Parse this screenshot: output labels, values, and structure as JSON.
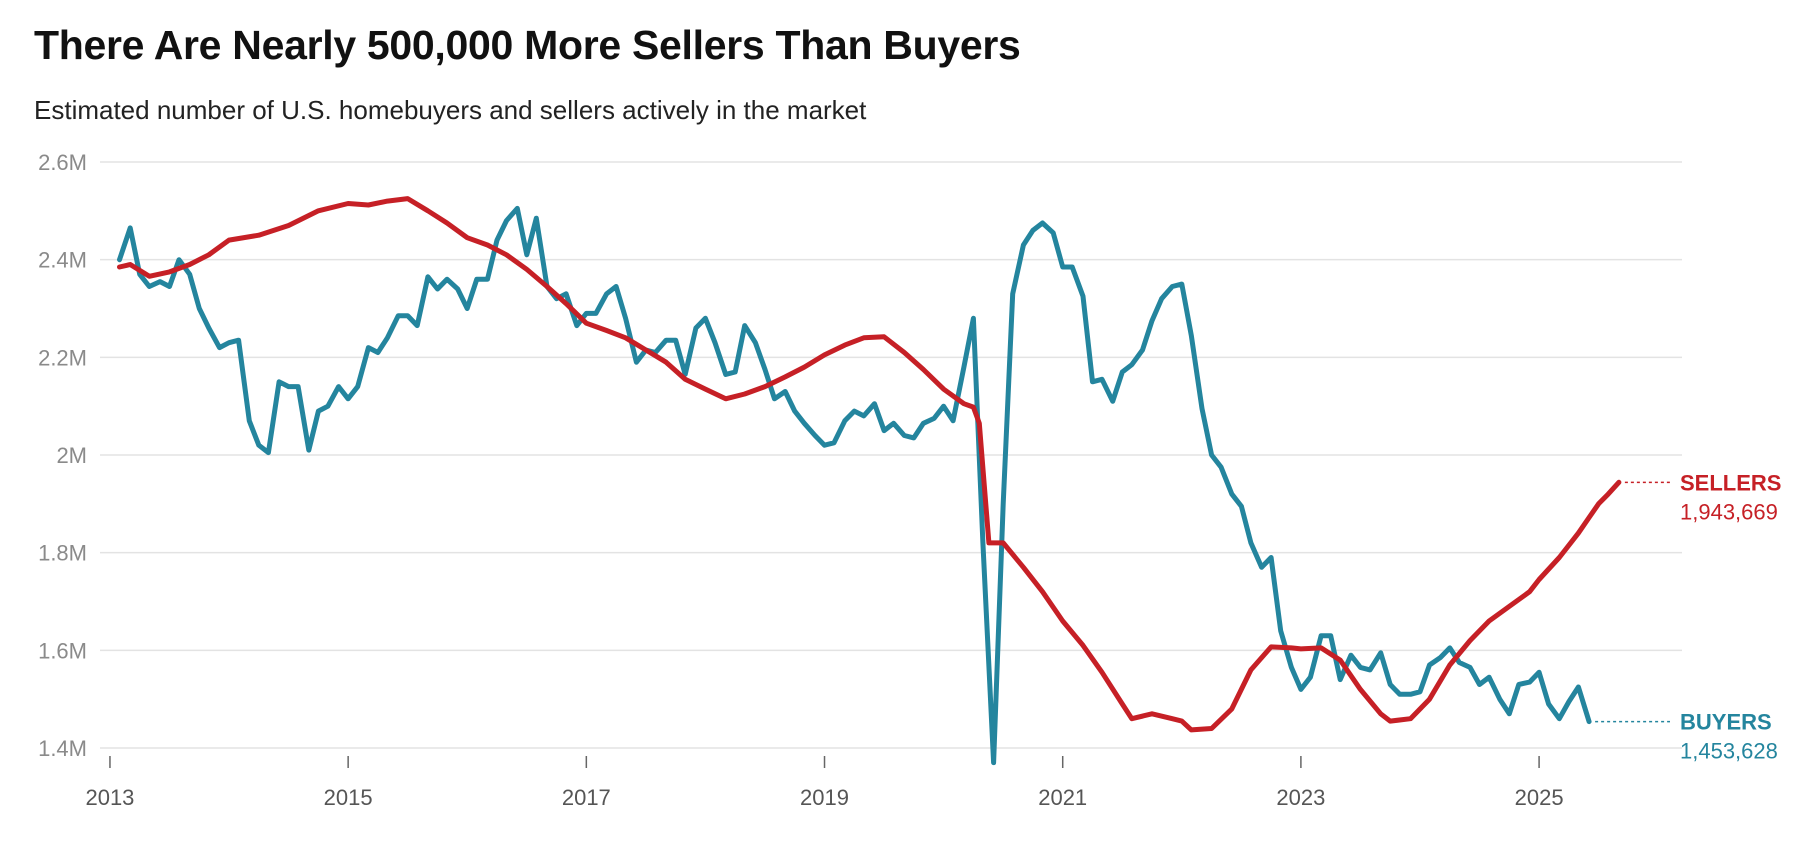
{
  "title": "There Are Nearly 500,000 More Sellers Than Buyers",
  "subtitle": "Estimated number of U.S. homebuyers and sellers actively in the market",
  "colors": {
    "sellers": "#c62026",
    "buyers": "#24859e",
    "grid": "#e3e3e3",
    "axis_text": "#8a8a8a"
  },
  "chart_data": {
    "type": "line",
    "title": "There Are Nearly 500,000 More Sellers Than Buyers",
    "subtitle": "Estimated number of U.S. homebuyers and sellers actively in the market",
    "xlabel": "",
    "ylabel": "",
    "xlim": [
      2012.95,
      2026.2
    ],
    "ylim": [
      1.4,
      2.6
    ],
    "grid": true,
    "y_ticks": [
      {
        "value": 2.6,
        "label": "2.6M"
      },
      {
        "value": 2.4,
        "label": "2.4M"
      },
      {
        "value": 2.2,
        "label": "2.2M"
      },
      {
        "value": 2.0,
        "label": "2M"
      },
      {
        "value": 1.8,
        "label": "1.8M"
      },
      {
        "value": 1.6,
        "label": "1.6M"
      },
      {
        "value": 1.4,
        "label": "1.4M"
      }
    ],
    "x_ticks": [
      {
        "value": 2013,
        "label": "2013"
      },
      {
        "value": 2015,
        "label": "2015"
      },
      {
        "value": 2017,
        "label": "2017"
      },
      {
        "value": 2019,
        "label": "2019"
      },
      {
        "value": 2021,
        "label": "2021"
      },
      {
        "value": 2023,
        "label": "2023"
      },
      {
        "value": 2025,
        "label": "2025"
      }
    ],
    "series": [
      {
        "name": "Sellers",
        "end_label": "SELLERS",
        "end_value": "1,943,669",
        "color": "#c62026",
        "points": [
          [
            2013.08,
            2.385
          ],
          [
            2013.17,
            2.39
          ],
          [
            2013.33,
            2.366
          ],
          [
            2013.5,
            2.375
          ],
          [
            2013.67,
            2.39
          ],
          [
            2013.83,
            2.41
          ],
          [
            2014.0,
            2.44
          ],
          [
            2014.25,
            2.45
          ],
          [
            2014.5,
            2.47
          ],
          [
            2014.75,
            2.5
          ],
          [
            2015.0,
            2.515
          ],
          [
            2015.17,
            2.512
          ],
          [
            2015.33,
            2.52
          ],
          [
            2015.5,
            2.525
          ],
          [
            2015.67,
            2.5
          ],
          [
            2015.83,
            2.475
          ],
          [
            2016.0,
            2.445
          ],
          [
            2016.17,
            2.43
          ],
          [
            2016.33,
            2.41
          ],
          [
            2016.5,
            2.38
          ],
          [
            2016.67,
            2.345
          ],
          [
            2016.83,
            2.31
          ],
          [
            2017.0,
            2.27
          ],
          [
            2017.17,
            2.255
          ],
          [
            2017.33,
            2.24
          ],
          [
            2017.5,
            2.215
          ],
          [
            2017.67,
            2.19
          ],
          [
            2017.83,
            2.155
          ],
          [
            2018.0,
            2.135
          ],
          [
            2018.17,
            2.115
          ],
          [
            2018.33,
            2.125
          ],
          [
            2018.5,
            2.14
          ],
          [
            2018.67,
            2.16
          ],
          [
            2018.83,
            2.18
          ],
          [
            2019.0,
            2.205
          ],
          [
            2019.17,
            2.225
          ],
          [
            2019.33,
            2.24
          ],
          [
            2019.5,
            2.242
          ],
          [
            2019.67,
            2.21
          ],
          [
            2019.83,
            2.175
          ],
          [
            2020.0,
            2.135
          ],
          [
            2020.17,
            2.105
          ],
          [
            2020.25,
            2.098
          ],
          [
            2020.3,
            2.065
          ],
          [
            2020.38,
            1.82
          ],
          [
            2020.5,
            1.82
          ],
          [
            2020.67,
            1.77
          ],
          [
            2020.83,
            1.72
          ],
          [
            2021.0,
            1.66
          ],
          [
            2021.17,
            1.61
          ],
          [
            2021.33,
            1.555
          ],
          [
            2021.5,
            1.49
          ],
          [
            2021.58,
            1.46
          ],
          [
            2021.75,
            1.47
          ],
          [
            2021.92,
            1.46
          ],
          [
            2022.0,
            1.455
          ],
          [
            2022.08,
            1.437
          ],
          [
            2022.25,
            1.44
          ],
          [
            2022.42,
            1.48
          ],
          [
            2022.58,
            1.56
          ],
          [
            2022.75,
            1.607
          ],
          [
            2022.92,
            1.605
          ],
          [
            2023.0,
            1.603
          ],
          [
            2023.17,
            1.605
          ],
          [
            2023.33,
            1.58
          ],
          [
            2023.5,
            1.52
          ],
          [
            2023.67,
            1.47
          ],
          [
            2023.75,
            1.455
          ],
          [
            2023.92,
            1.46
          ],
          [
            2024.08,
            1.5
          ],
          [
            2024.25,
            1.57
          ],
          [
            2024.42,
            1.62
          ],
          [
            2024.58,
            1.66
          ],
          [
            2024.75,
            1.69
          ],
          [
            2024.92,
            1.72
          ],
          [
            2025.0,
            1.745
          ],
          [
            2025.17,
            1.79
          ],
          [
            2025.33,
            1.84
          ],
          [
            2025.42,
            1.872
          ],
          [
            2025.5,
            1.9
          ],
          [
            2025.58,
            1.92
          ],
          [
            2025.67,
            1.944
          ]
        ]
      },
      {
        "name": "Buyers",
        "end_label": "BUYERS",
        "end_value": "1,453,628",
        "color": "#24859e",
        "points": [
          [
            2013.08,
            2.4
          ],
          [
            2013.17,
            2.465
          ],
          [
            2013.25,
            2.37
          ],
          [
            2013.33,
            2.345
          ],
          [
            2013.42,
            2.355
          ],
          [
            2013.5,
            2.345
          ],
          [
            2013.58,
            2.4
          ],
          [
            2013.67,
            2.37
          ],
          [
            2013.75,
            2.3
          ],
          [
            2013.83,
            2.26
          ],
          [
            2013.92,
            2.22
          ],
          [
            2014.0,
            2.23
          ],
          [
            2014.08,
            2.235
          ],
          [
            2014.17,
            2.07
          ],
          [
            2014.25,
            2.02
          ],
          [
            2014.33,
            2.005
          ],
          [
            2014.42,
            2.15
          ],
          [
            2014.5,
            2.14
          ],
          [
            2014.58,
            2.14
          ],
          [
            2014.67,
            2.01
          ],
          [
            2014.75,
            2.09
          ],
          [
            2014.83,
            2.1
          ],
          [
            2014.92,
            2.14
          ],
          [
            2015.0,
            2.115
          ],
          [
            2015.08,
            2.14
          ],
          [
            2015.17,
            2.22
          ],
          [
            2015.25,
            2.21
          ],
          [
            2015.33,
            2.24
          ],
          [
            2015.42,
            2.285
          ],
          [
            2015.5,
            2.285
          ],
          [
            2015.58,
            2.265
          ],
          [
            2015.67,
            2.365
          ],
          [
            2015.75,
            2.34
          ],
          [
            2015.83,
            2.36
          ],
          [
            2015.92,
            2.34
          ],
          [
            2016.0,
            2.3
          ],
          [
            2016.08,
            2.36
          ],
          [
            2016.17,
            2.36
          ],
          [
            2016.25,
            2.44
          ],
          [
            2016.33,
            2.48
          ],
          [
            2016.42,
            2.505
          ],
          [
            2016.5,
            2.41
          ],
          [
            2016.58,
            2.485
          ],
          [
            2016.67,
            2.345
          ],
          [
            2016.75,
            2.32
          ],
          [
            2016.83,
            2.33
          ],
          [
            2016.92,
            2.265
          ],
          [
            2017.0,
            2.29
          ],
          [
            2017.08,
            2.29
          ],
          [
            2017.17,
            2.33
          ],
          [
            2017.25,
            2.345
          ],
          [
            2017.33,
            2.28
          ],
          [
            2017.42,
            2.19
          ],
          [
            2017.5,
            2.215
          ],
          [
            2017.58,
            2.21
          ],
          [
            2017.67,
            2.235
          ],
          [
            2017.75,
            2.235
          ],
          [
            2017.83,
            2.165
          ],
          [
            2017.92,
            2.26
          ],
          [
            2018.0,
            2.28
          ],
          [
            2018.08,
            2.23
          ],
          [
            2018.17,
            2.165
          ],
          [
            2018.25,
            2.17
          ],
          [
            2018.33,
            2.265
          ],
          [
            2018.42,
            2.23
          ],
          [
            2018.5,
            2.175
          ],
          [
            2018.58,
            2.115
          ],
          [
            2018.67,
            2.13
          ],
          [
            2018.75,
            2.09
          ],
          [
            2018.83,
            2.065
          ],
          [
            2018.92,
            2.04
          ],
          [
            2019.0,
            2.02
          ],
          [
            2019.08,
            2.025
          ],
          [
            2019.17,
            2.07
          ],
          [
            2019.25,
            2.09
          ],
          [
            2019.33,
            2.08
          ],
          [
            2019.42,
            2.105
          ],
          [
            2019.5,
            2.05
          ],
          [
            2019.58,
            2.065
          ],
          [
            2019.67,
            2.04
          ],
          [
            2019.75,
            2.035
          ],
          [
            2019.83,
            2.065
          ],
          [
            2019.92,
            2.075
          ],
          [
            2020.0,
            2.1
          ],
          [
            2020.08,
            2.07
          ],
          [
            2020.17,
            2.18
          ],
          [
            2020.25,
            2.28
          ],
          [
            2020.33,
            1.82
          ],
          [
            2020.42,
            1.37
          ],
          [
            2020.5,
            1.9
          ],
          [
            2020.58,
            2.33
          ],
          [
            2020.67,
            2.43
          ],
          [
            2020.75,
            2.46
          ],
          [
            2020.83,
            2.475
          ],
          [
            2020.92,
            2.455
          ],
          [
            2021.0,
            2.385
          ],
          [
            2021.08,
            2.385
          ],
          [
            2021.17,
            2.325
          ],
          [
            2021.25,
            2.15
          ],
          [
            2021.33,
            2.155
          ],
          [
            2021.42,
            2.11
          ],
          [
            2021.5,
            2.17
          ],
          [
            2021.58,
            2.185
          ],
          [
            2021.67,
            2.215
          ],
          [
            2021.75,
            2.275
          ],
          [
            2021.83,
            2.32
          ],
          [
            2021.92,
            2.345
          ],
          [
            2022.0,
            2.35
          ],
          [
            2022.08,
            2.245
          ],
          [
            2022.17,
            2.095
          ],
          [
            2022.25,
            2.0
          ],
          [
            2022.33,
            1.975
          ],
          [
            2022.42,
            1.92
          ],
          [
            2022.5,
            1.895
          ],
          [
            2022.58,
            1.82
          ],
          [
            2022.67,
            1.77
          ],
          [
            2022.75,
            1.79
          ],
          [
            2022.83,
            1.64
          ],
          [
            2022.92,
            1.565
          ],
          [
            2023.0,
            1.52
          ],
          [
            2023.08,
            1.545
          ],
          [
            2023.17,
            1.63
          ],
          [
            2023.25,
            1.63
          ],
          [
            2023.33,
            1.54
          ],
          [
            2023.42,
            1.59
          ],
          [
            2023.5,
            1.565
          ],
          [
            2023.58,
            1.56
          ],
          [
            2023.67,
            1.595
          ],
          [
            2023.75,
            1.53
          ],
          [
            2023.83,
            1.51
          ],
          [
            2023.92,
            1.51
          ],
          [
            2024.0,
            1.515
          ],
          [
            2024.08,
            1.57
          ],
          [
            2024.17,
            1.585
          ],
          [
            2024.25,
            1.605
          ],
          [
            2024.33,
            1.575
          ],
          [
            2024.42,
            1.565
          ],
          [
            2024.5,
            1.53
          ],
          [
            2024.58,
            1.545
          ],
          [
            2024.67,
            1.5
          ],
          [
            2024.75,
            1.47
          ],
          [
            2024.83,
            1.53
          ],
          [
            2024.92,
            1.535
          ],
          [
            2025.0,
            1.555
          ],
          [
            2025.08,
            1.49
          ],
          [
            2025.17,
            1.46
          ],
          [
            2025.25,
            1.495
          ],
          [
            2025.33,
            1.525
          ],
          [
            2025.42,
            1.454
          ]
        ]
      }
    ]
  }
}
